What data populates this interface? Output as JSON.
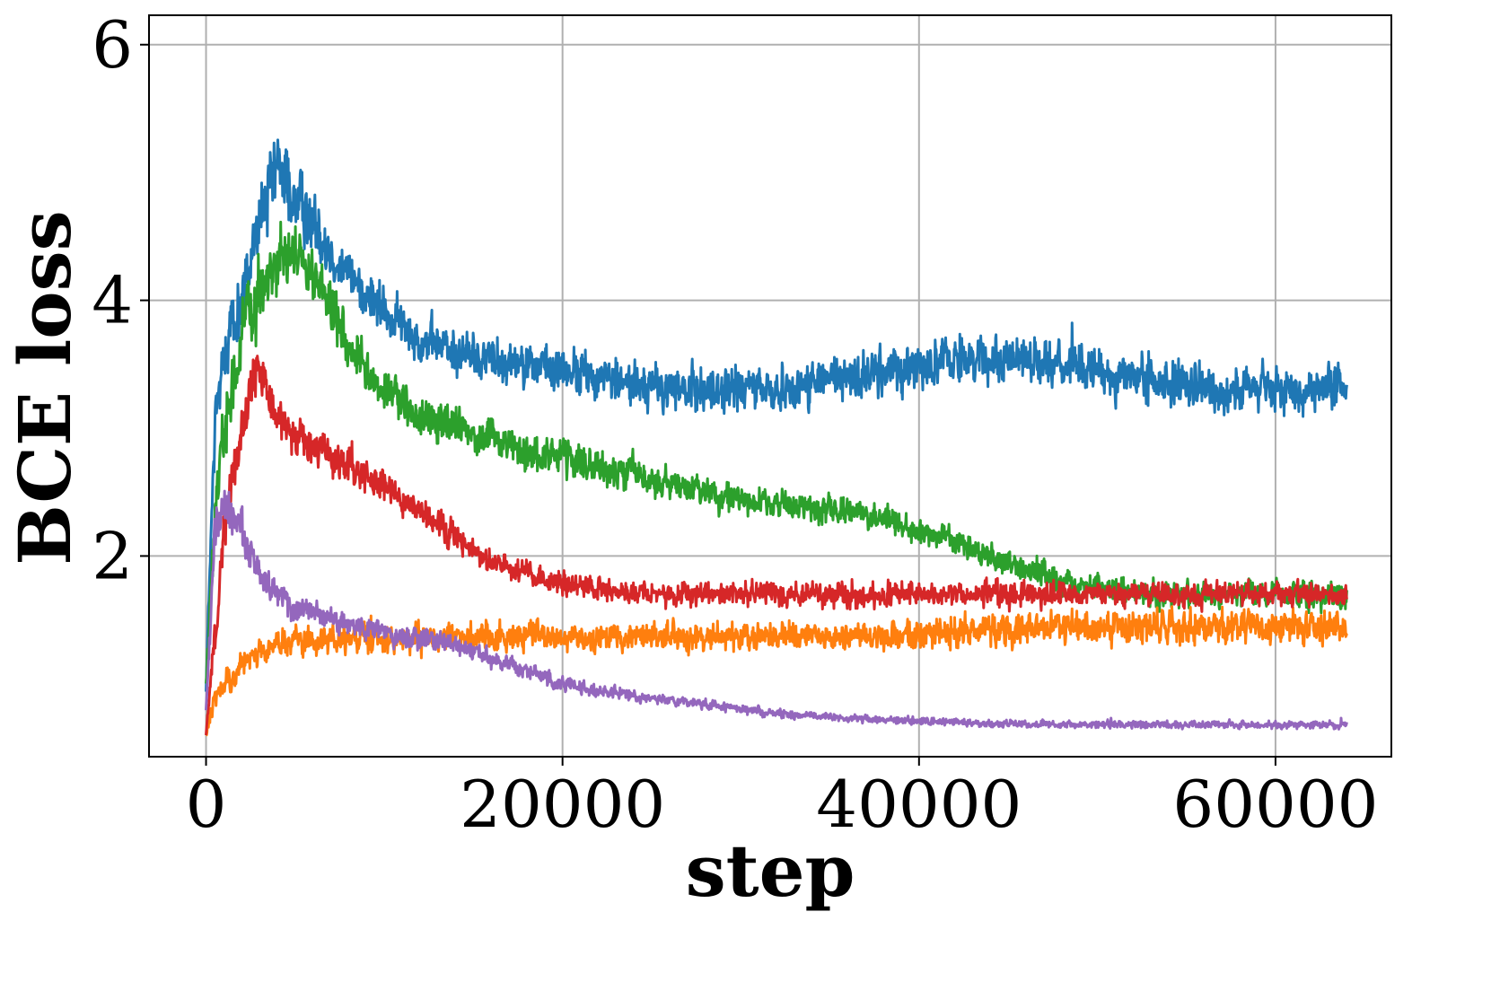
{
  "chart_data": {
    "type": "line",
    "title": "",
    "xlabel": "step",
    "ylabel": "BCE loss",
    "xlim": [
      -3200,
      66500
    ],
    "ylim": [
      0.43,
      6.23
    ],
    "xticks": [
      0,
      20000,
      40000,
      60000
    ],
    "xtick_labels": [
      "0",
      "20000",
      "40000",
      "60000"
    ],
    "yticks": [
      2,
      4,
      6
    ],
    "ytick_labels": [
      "2",
      "4",
      "6"
    ],
    "grid": true,
    "legend": "none",
    "noise_note_omitted": true,
    "series": [
      {
        "color": "#1f77b4",
        "x": [
          0,
          500,
          1000,
          2000,
          3000,
          4000,
          5000,
          6000,
          7000,
          8000,
          10000,
          12000,
          14000,
          16000,
          18000,
          20000,
          22000,
          24000,
          26000,
          28000,
          30000,
          32000,
          34000,
          36000,
          38000,
          40000,
          42000,
          44000,
          46000,
          48000,
          50000,
          52000,
          54000,
          56000,
          58000,
          60000,
          62000,
          64000
        ],
        "y": [
          1.0,
          3.0,
          3.6,
          4.0,
          4.6,
          5.0,
          4.8,
          4.6,
          4.4,
          4.2,
          3.9,
          3.7,
          3.6,
          3.55,
          3.5,
          3.45,
          3.4,
          3.35,
          3.3,
          3.3,
          3.3,
          3.3,
          3.35,
          3.4,
          3.45,
          3.5,
          3.55,
          3.55,
          3.55,
          3.5,
          3.45,
          3.4,
          3.35,
          3.3,
          3.3,
          3.3,
          3.3,
          3.3
        ],
        "noise": [
          0.1,
          0.35,
          0.35,
          0.35,
          0.4,
          0.45,
          0.4,
          0.35,
          0.3,
          0.28,
          0.25,
          0.25,
          0.25,
          0.25,
          0.25,
          0.25,
          0.25,
          0.25,
          0.25,
          0.25,
          0.25,
          0.25,
          0.25,
          0.25,
          0.25,
          0.25,
          0.25,
          0.25,
          0.25,
          0.25,
          0.25,
          0.25,
          0.25,
          0.25,
          0.25,
          0.25,
          0.25,
          0.25
        ]
      },
      {
        "color": "#2ca02c",
        "x": [
          0,
          500,
          1000,
          2000,
          3000,
          4000,
          5000,
          6000,
          7000,
          8000,
          10000,
          12000,
          14000,
          16000,
          18000,
          20000,
          22000,
          24000,
          26000,
          28000,
          30000,
          32000,
          34000,
          36000,
          38000,
          40000,
          42000,
          44000,
          46000,
          48000,
          50000,
          52000,
          54000,
          56000,
          58000,
          60000,
          62000,
          64000
        ],
        "y": [
          1.0,
          2.3,
          3.0,
          3.7,
          4.1,
          4.3,
          4.35,
          4.2,
          3.9,
          3.6,
          3.3,
          3.1,
          3.0,
          2.9,
          2.8,
          2.75,
          2.7,
          2.65,
          2.55,
          2.5,
          2.45,
          2.4,
          2.38,
          2.35,
          2.3,
          2.2,
          2.1,
          2.0,
          1.9,
          1.8,
          1.75,
          1.72,
          1.7,
          1.7,
          1.7,
          1.7,
          1.7,
          1.7
        ],
        "noise": [
          0.1,
          0.35,
          0.35,
          0.35,
          0.35,
          0.35,
          0.35,
          0.32,
          0.3,
          0.25,
          0.22,
          0.22,
          0.22,
          0.2,
          0.2,
          0.2,
          0.2,
          0.2,
          0.18,
          0.17,
          0.16,
          0.15,
          0.15,
          0.15,
          0.15,
          0.15,
          0.15,
          0.15,
          0.15,
          0.15,
          0.15,
          0.15,
          0.15,
          0.15,
          0.15,
          0.15,
          0.15,
          0.15
        ]
      },
      {
        "color": "#ff7f0e",
        "x": [
          0,
          500,
          1000,
          2000,
          3000,
          4000,
          5000,
          6000,
          7000,
          8000,
          10000,
          12000,
          14000,
          16000,
          18000,
          20000,
          22000,
          24000,
          26000,
          28000,
          30000,
          32000,
          34000,
          36000,
          38000,
          40000,
          42000,
          44000,
          46000,
          48000,
          50000,
          52000,
          54000,
          56000,
          58000,
          60000,
          62000,
          64000
        ],
        "y": [
          0.6,
          0.9,
          1.0,
          1.15,
          1.25,
          1.3,
          1.32,
          1.33,
          1.34,
          1.35,
          1.35,
          1.35,
          1.36,
          1.36,
          1.37,
          1.37,
          1.37,
          1.37,
          1.37,
          1.37,
          1.37,
          1.37,
          1.37,
          1.37,
          1.37,
          1.38,
          1.4,
          1.42,
          1.44,
          1.45,
          1.45,
          1.45,
          1.45,
          1.45,
          1.45,
          1.45,
          1.45,
          1.45
        ],
        "noise": [
          0.05,
          0.15,
          0.15,
          0.15,
          0.15,
          0.15,
          0.15,
          0.15,
          0.15,
          0.15,
          0.15,
          0.15,
          0.15,
          0.15,
          0.15,
          0.15,
          0.15,
          0.15,
          0.15,
          0.15,
          0.15,
          0.15,
          0.15,
          0.15,
          0.15,
          0.16,
          0.18,
          0.18,
          0.18,
          0.18,
          0.18,
          0.18,
          0.18,
          0.18,
          0.18,
          0.18,
          0.18,
          0.18
        ]
      },
      {
        "color": "#d62728",
        "x": [
          0,
          500,
          1000,
          2000,
          3000,
          4000,
          5000,
          6000,
          7000,
          8000,
          10000,
          12000,
          14000,
          16000,
          18000,
          20000,
          22000,
          24000,
          26000,
          28000,
          30000,
          32000,
          34000,
          36000,
          38000,
          40000,
          42000,
          44000,
          46000,
          48000,
          50000,
          52000,
          54000,
          56000,
          58000,
          60000,
          62000,
          64000
        ],
        "y": [
          0.6,
          1.4,
          2.2,
          3.0,
          3.5,
          3.1,
          2.9,
          2.85,
          2.8,
          2.7,
          2.55,
          2.35,
          2.15,
          1.95,
          1.85,
          1.78,
          1.75,
          1.72,
          1.7,
          1.7,
          1.7,
          1.7,
          1.7,
          1.7,
          1.7,
          1.7,
          1.7,
          1.7,
          1.7,
          1.7,
          1.7,
          1.7,
          1.7,
          1.7,
          1.7,
          1.7,
          1.7,
          1.7
        ],
        "noise": [
          0.05,
          0.25,
          0.25,
          0.3,
          0.3,
          0.25,
          0.22,
          0.2,
          0.2,
          0.2,
          0.18,
          0.15,
          0.15,
          0.14,
          0.13,
          0.13,
          0.13,
          0.13,
          0.13,
          0.13,
          0.13,
          0.13,
          0.13,
          0.13,
          0.13,
          0.13,
          0.13,
          0.13,
          0.13,
          0.13,
          0.13,
          0.13,
          0.13,
          0.13,
          0.13,
          0.13,
          0.13,
          0.13
        ]
      },
      {
        "color": "#9467bd",
        "x": [
          0,
          500,
          1000,
          2000,
          3000,
          4000,
          5000,
          6000,
          7000,
          8000,
          10000,
          12000,
          14000,
          16000,
          18000,
          20000,
          22000,
          24000,
          26000,
          28000,
          30000,
          32000,
          34000,
          36000,
          38000,
          40000,
          42000,
          44000,
          46000,
          48000,
          50000,
          52000,
          54000,
          56000,
          58000,
          60000,
          62000,
          64000
        ],
        "y": [
          0.8,
          2.2,
          2.4,
          2.2,
          1.85,
          1.7,
          1.6,
          1.55,
          1.5,
          1.45,
          1.4,
          1.35,
          1.3,
          1.2,
          1.1,
          1.0,
          0.95,
          0.9,
          0.87,
          0.84,
          0.8,
          0.77,
          0.75,
          0.73,
          0.72,
          0.71,
          0.7,
          0.69,
          0.69,
          0.68,
          0.68,
          0.68,
          0.68,
          0.68,
          0.68,
          0.68,
          0.68,
          0.68
        ],
        "noise": [
          0.1,
          0.25,
          0.25,
          0.22,
          0.18,
          0.15,
          0.14,
          0.13,
          0.12,
          0.12,
          0.12,
          0.12,
          0.11,
          0.1,
          0.09,
          0.08,
          0.07,
          0.06,
          0.05,
          0.05,
          0.05,
          0.05,
          0.04,
          0.04,
          0.04,
          0.04,
          0.04,
          0.04,
          0.04,
          0.04,
          0.04,
          0.04,
          0.04,
          0.04,
          0.04,
          0.04,
          0.04,
          0.04
        ]
      }
    ]
  }
}
